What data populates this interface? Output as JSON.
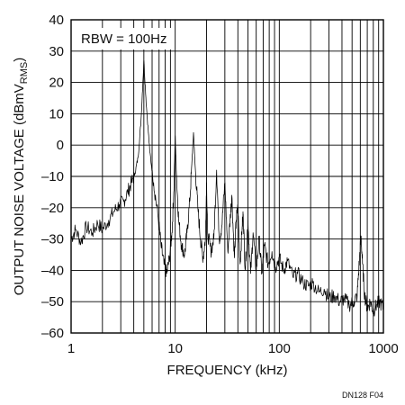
{
  "chart_data": {
    "type": "line",
    "title": "",
    "xlabel": "FREQUENCY (kHz)",
    "ylabel_main": "OUTPUT NOISE VOLTAGE (dBmV",
    "ylabel_sub": "RMS",
    "ylabel_close": ")",
    "xscale": "log",
    "xlim": [
      1,
      1000
    ],
    "ylim": [
      -60,
      40
    ],
    "x_ticks": [
      1,
      10,
      100,
      1000
    ],
    "x_tick_labels": [
      "1",
      "10",
      "100",
      "1000"
    ],
    "y_ticks": [
      40,
      30,
      20,
      10,
      0,
      -10,
      -20,
      -30,
      -40,
      -50,
      -60
    ],
    "y_tick_labels": [
      "40",
      "30",
      "20",
      "10",
      "0",
      "–10",
      "–20",
      "–30",
      "–40",
      "–50",
      "–60"
    ],
    "grid": true,
    "annotation": "RBW = 100Hz",
    "figure_code": "DN128 F04",
    "series": [
      {
        "points": [
          [
            1.0,
            -30
          ],
          [
            1.1,
            -27
          ],
          [
            1.25,
            -31
          ],
          [
            1.4,
            -26
          ],
          [
            1.6,
            -28
          ],
          [
            1.8,
            -25
          ],
          [
            2.0,
            -27
          ],
          [
            2.3,
            -24
          ],
          [
            2.6,
            -21
          ],
          [
            2.9,
            -19
          ],
          [
            3.2,
            -18
          ],
          [
            3.5,
            -15
          ],
          [
            3.8,
            -12
          ],
          [
            4.1,
            -9
          ],
          [
            4.4,
            -4
          ],
          [
            4.7,
            8
          ],
          [
            5.0,
            27
          ],
          [
            5.3,
            12
          ],
          [
            5.7,
            -2
          ],
          [
            6.2,
            -12
          ],
          [
            6.8,
            -22
          ],
          [
            7.3,
            -32
          ],
          [
            7.8,
            -38
          ],
          [
            8.3,
            -41
          ],
          [
            8.8,
            -36
          ],
          [
            9.3,
            -28
          ],
          [
            9.7,
            -15
          ],
          [
            10.0,
            3
          ],
          [
            10.3,
            -10
          ],
          [
            10.8,
            -24
          ],
          [
            11.5,
            -32
          ],
          [
            12.3,
            -35
          ],
          [
            13.0,
            -28
          ],
          [
            13.8,
            -18
          ],
          [
            14.5,
            -5
          ],
          [
            15.0,
            4
          ],
          [
            15.5,
            -6
          ],
          [
            16.5,
            -20
          ],
          [
            17.5,
            -30
          ],
          [
            18.5,
            -36
          ],
          [
            19.5,
            -30
          ],
          [
            20.0,
            -12
          ],
          [
            20.5,
            -28
          ],
          [
            22.0,
            -34
          ],
          [
            23.5,
            -30
          ],
          [
            25.0,
            -8
          ],
          [
            26.5,
            -30
          ],
          [
            28.0,
            -26
          ],
          [
            30.0,
            -12
          ],
          [
            32.0,
            -34
          ],
          [
            34.0,
            -22
          ],
          [
            35.0,
            -16
          ],
          [
            37.0,
            -36
          ],
          [
            38.5,
            -24
          ],
          [
            40.0,
            -20
          ],
          [
            42.0,
            -38
          ],
          [
            44.0,
            -26
          ],
          [
            45.0,
            -22
          ],
          [
            47.0,
            -40
          ],
          [
            50.0,
            -24
          ],
          [
            53.0,
            -41
          ],
          [
            56.0,
            -28
          ],
          [
            60.0,
            -40
          ],
          [
            64.0,
            -30
          ],
          [
            68.0,
            -41
          ],
          [
            72.0,
            -32
          ],
          [
            78.0,
            -38
          ],
          [
            85.0,
            -34
          ],
          [
            92.0,
            -39
          ],
          [
            100.0,
            -36
          ],
          [
            110.0,
            -40
          ],
          [
            120.0,
            -37
          ],
          [
            135.0,
            -42
          ],
          [
            150.0,
            -41
          ],
          [
            170.0,
            -44
          ],
          [
            190.0,
            -45
          ],
          [
            210.0,
            -44
          ],
          [
            240.0,
            -47
          ],
          [
            270.0,
            -46
          ],
          [
            300.0,
            -49
          ],
          [
            340.0,
            -48
          ],
          [
            380.0,
            -50
          ],
          [
            420.0,
            -49
          ],
          [
            470.0,
            -51
          ],
          [
            520.0,
            -50
          ],
          [
            560.0,
            -48
          ],
          [
            590.0,
            -36
          ],
          [
            610.0,
            -29
          ],
          [
            630.0,
            -38
          ],
          [
            660.0,
            -48
          ],
          [
            700.0,
            -52
          ],
          [
            750.0,
            -50
          ],
          [
            800.0,
            -53
          ],
          [
            860.0,
            -51
          ],
          [
            920.0,
            -50
          ],
          [
            1000.0,
            -52
          ]
        ]
      }
    ]
  }
}
